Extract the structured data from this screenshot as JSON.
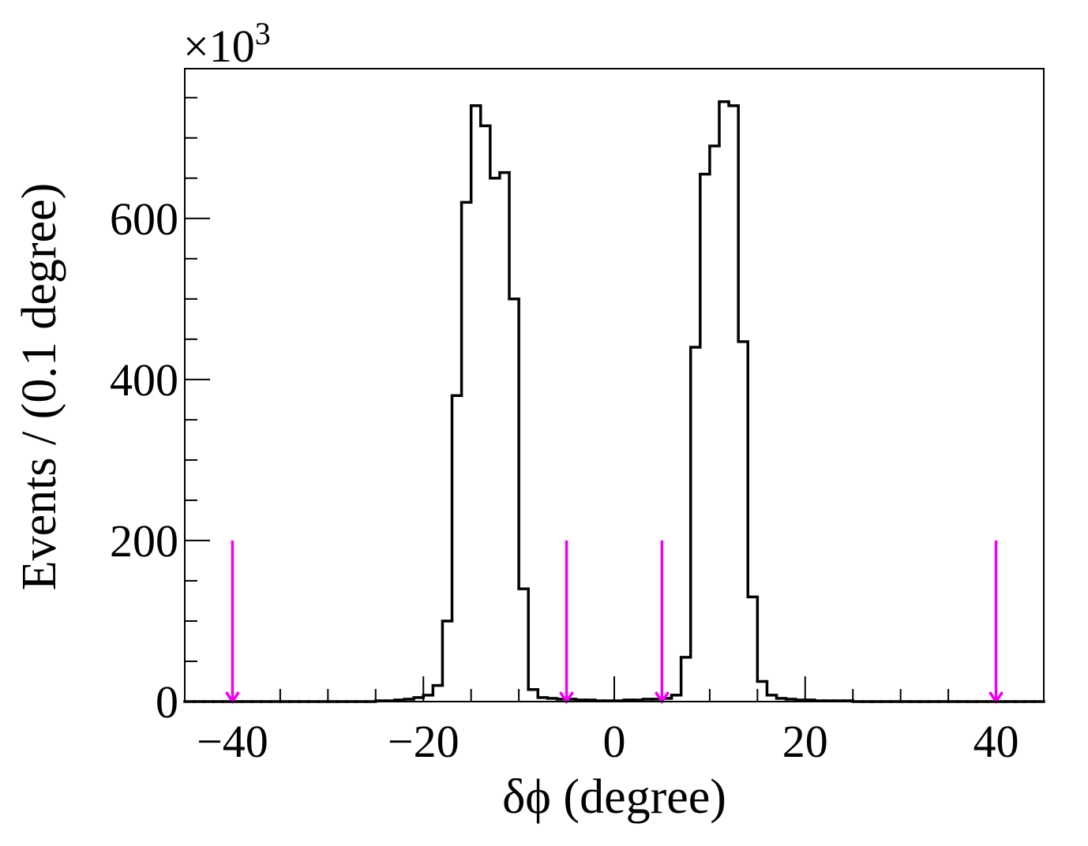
{
  "chart_data": {
    "type": "histogram",
    "x_label": "δϕ (degree)",
    "y_label": "Events / (0.1 degree)",
    "y_multiplier": {
      "base": "×10",
      "exponent": "3"
    },
    "bins": [
      -45,
      -44,
      -43,
      -42,
      -41,
      -40,
      -39,
      -38,
      -37,
      -36,
      -35,
      -34,
      -33,
      -32,
      -31,
      -30,
      -29,
      -28,
      -27,
      -26,
      -25,
      -24,
      -23,
      -22,
      -21,
      -20,
      -19,
      -18,
      -17,
      -16,
      -15,
      -14,
      -13,
      -12,
      -11,
      -10,
      -9,
      -8,
      -7,
      -6,
      -5,
      -4,
      -3,
      -2,
      -1,
      0,
      1,
      2,
      3,
      4,
      5,
      6,
      7,
      8,
      9,
      10,
      11,
      12,
      13,
      14,
      15,
      16,
      17,
      18,
      19,
      20,
      21,
      22,
      23,
      24,
      25,
      26,
      27,
      28,
      29,
      30,
      31,
      32,
      33,
      34,
      35,
      36,
      37,
      38,
      39,
      40,
      41,
      42,
      43,
      44,
      45
    ],
    "values": [
      0,
      0,
      0,
      0,
      0,
      0,
      0,
      0,
      0,
      0,
      0,
      0,
      0,
      0,
      0,
      0,
      0,
      0,
      0,
      0,
      1,
      1,
      2,
      3,
      5,
      8,
      20,
      100,
      380,
      620,
      740,
      715,
      650,
      657,
      500,
      140,
      15,
      5,
      4,
      3,
      3,
      2,
      2,
      1,
      1,
      1,
      2,
      2,
      3,
      3,
      4,
      8,
      55,
      440,
      655,
      690,
      745,
      740,
      447,
      130,
      25,
      8,
      4,
      3,
      2,
      2,
      1,
      1,
      1,
      1,
      0,
      0,
      0,
      0,
      0,
      0,
      0,
      0,
      0,
      0,
      0,
      0,
      0,
      0,
      0,
      0,
      0,
      0,
      0,
      0
    ],
    "color": "#000000",
    "xlim": [
      -45,
      45
    ],
    "ylim": [
      0,
      786
    ],
    "xticks": [
      {
        "value": -40,
        "label": "−40"
      },
      {
        "value": -20,
        "label": "−20"
      },
      0,
      20,
      40
    ],
    "xminor_ticks": [
      -45,
      -35,
      -30,
      -25,
      -15,
      -10,
      -5,
      5,
      10,
      15,
      25,
      30,
      35,
      45
    ],
    "yticks": [
      0,
      200,
      400,
      600
    ],
    "yminor_ticks": [
      50,
      100,
      150,
      250,
      300,
      350,
      450,
      500,
      550,
      650,
      700,
      750
    ],
    "arrows": {
      "x": [
        -40,
        -5,
        5,
        40
      ],
      "from": 200,
      "to": 0,
      "color": "#ee00ee"
    }
  }
}
